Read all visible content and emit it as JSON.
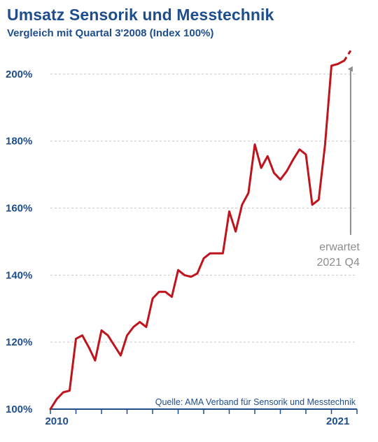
{
  "header": {
    "title": "Umsatz Sensorik und Messtechnik",
    "subtitle": "Vergleich mit Quartal 3'2008 (Index 100%)"
  },
  "source": "Quelle: AMA Verband für Sensorik und Messtechnik",
  "annotation": {
    "line1": "erwartet",
    "line2": "2021 Q4"
  },
  "colors": {
    "title": "#1f4e8c",
    "line": "#c0141c",
    "axis": "#1f4e8c",
    "grid": "#c8c8c8",
    "arrow": "#8c8c8c",
    "annotation": "#8c8c8c"
  },
  "chart_data": {
    "type": "line",
    "title": "Umsatz Sensorik und Messtechnik",
    "subtitle": "Vergleich mit Quartal 3'2008 (Index 100%)",
    "xlabel": "",
    "ylabel": "",
    "ylim": [
      100,
      210
    ],
    "yticks": [
      100,
      120,
      140,
      160,
      180,
      200
    ],
    "ytick_labels": [
      "100%",
      "120%",
      "140%",
      "160%",
      "180%",
      "200%"
    ],
    "xlim": [
      2009.75,
      2021.75
    ],
    "xtick_labels": [
      {
        "x": 2010,
        "label": "2010"
      },
      {
        "x": 2021,
        "label": "2021"
      }
    ],
    "grid": true,
    "series": [
      {
        "name": "",
        "style": "solid",
        "points": [
          [
            2009.75,
            100
          ],
          [
            2010.0,
            103
          ],
          [
            2010.25,
            105
          ],
          [
            2010.5,
            105.5
          ],
          [
            2010.75,
            121
          ],
          [
            2011.0,
            122
          ],
          [
            2011.25,
            118.5
          ],
          [
            2011.5,
            114.5
          ],
          [
            2011.75,
            123.5
          ],
          [
            2012.0,
            122
          ],
          [
            2012.25,
            119
          ],
          [
            2012.5,
            116
          ],
          [
            2012.75,
            122
          ],
          [
            2013.0,
            124.5
          ],
          [
            2013.25,
            126
          ],
          [
            2013.5,
            124.5
          ],
          [
            2013.75,
            133
          ],
          [
            2014.0,
            135
          ],
          [
            2014.25,
            135
          ],
          [
            2014.5,
            133.5
          ],
          [
            2014.75,
            141.5
          ],
          [
            2015.0,
            140
          ],
          [
            2015.25,
            139.5
          ],
          [
            2015.5,
            140.5
          ],
          [
            2015.75,
            145
          ],
          [
            2016.0,
            146.5
          ],
          [
            2016.25,
            146.5
          ],
          [
            2016.5,
            146.5
          ],
          [
            2016.75,
            159
          ],
          [
            2017.0,
            153
          ],
          [
            2017.25,
            161
          ],
          [
            2017.5,
            164.5
          ],
          [
            2017.75,
            179
          ],
          [
            2018.0,
            172
          ],
          [
            2018.25,
            175.5
          ],
          [
            2018.5,
            170.5
          ],
          [
            2018.75,
            168.5
          ],
          [
            2019.0,
            171
          ],
          [
            2019.25,
            174.5
          ],
          [
            2019.5,
            177.5
          ],
          [
            2019.75,
            176
          ],
          [
            2020.0,
            161
          ],
          [
            2020.25,
            162.5
          ],
          [
            2020.5,
            179
          ],
          [
            2020.75,
            202.5
          ],
          [
            2021.0,
            203
          ],
          [
            2021.25,
            204
          ]
        ]
      },
      {
        "name": "",
        "style": "dashed",
        "points": [
          [
            2021.25,
            204
          ],
          [
            2021.5,
            207
          ]
        ]
      }
    ],
    "annotation": {
      "text": [
        "erwartet",
        "2021 Q4"
      ],
      "arrow_x": 2021.5,
      "arrow_from_y": 152,
      "arrow_to_y": 201.5
    }
  }
}
